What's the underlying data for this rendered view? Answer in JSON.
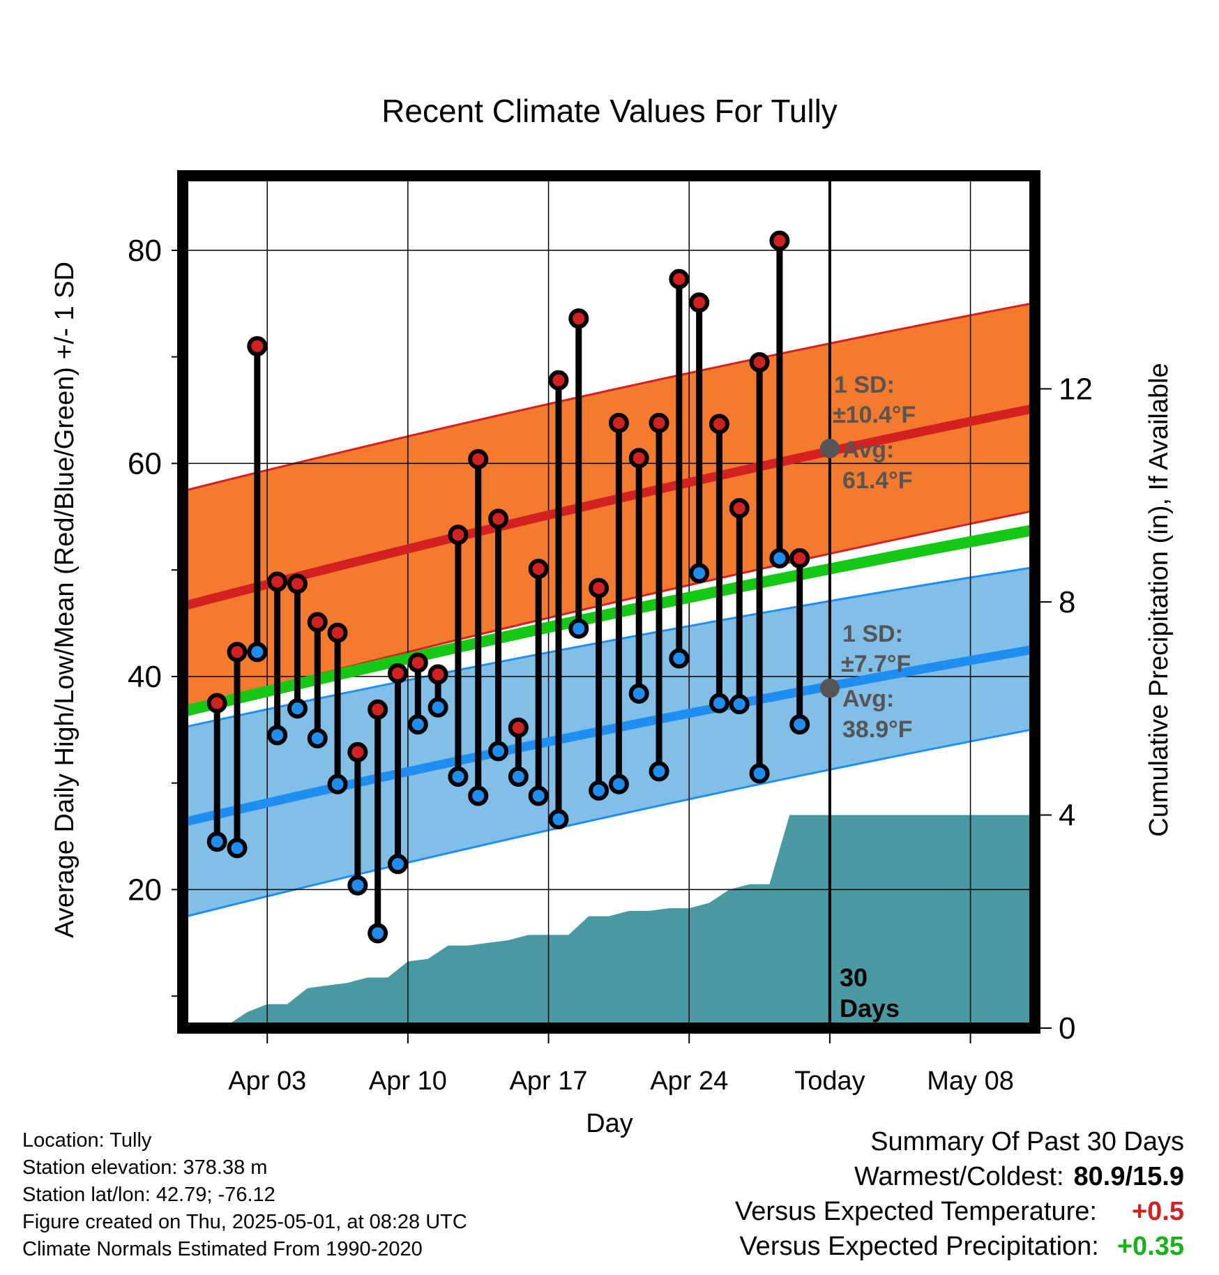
{
  "chart_data": {
    "type": "line",
    "title": "Recent Climate Values For Tully",
    "xlabel": "Day",
    "ylabel": "Average Daily High/Low/Mean (Red/Blue/Green) +/- 1 SD",
    "y2label": "Cumulative Precipitation (in), If Available",
    "x_domain": [
      "2025-03-30",
      "2025-05-11"
    ],
    "ylim": [
      7,
      87
    ],
    "y2lim": [
      0,
      16
    ],
    "yticks": [
      20,
      40,
      60,
      80
    ],
    "y2ticks": [
      0,
      4,
      8,
      12
    ],
    "xticks": [
      {
        "date": "2025-04-03",
        "label": "Apr 03"
      },
      {
        "date": "2025-04-10",
        "label": "Apr 10"
      },
      {
        "date": "2025-04-17",
        "label": "Apr 17"
      },
      {
        "date": "2025-04-24",
        "label": "Apr 24"
      },
      {
        "date": "2025-05-01",
        "label": "Today"
      },
      {
        "date": "2025-05-08",
        "label": "May 08"
      }
    ],
    "grid": true,
    "normals": {
      "dates": [
        "2025-03-30",
        "2025-05-11"
      ],
      "high_mean": [
        46.7,
        65.1
      ],
      "high_upper": [
        57.5,
        75.0
      ],
      "high_lower": [
        37.0,
        55.5
      ],
      "mean_avg": [
        36.8,
        53.7
      ],
      "low_mean": [
        26.4,
        42.5
      ],
      "low_upper": [
        35.3,
        50.2
      ],
      "low_lower": [
        17.5,
        35.0
      ]
    },
    "daily": {
      "dates": [
        "2025-03-31",
        "2025-04-01",
        "2025-04-02",
        "2025-04-03",
        "2025-04-04",
        "2025-04-05",
        "2025-04-06",
        "2025-04-07",
        "2025-04-08",
        "2025-04-09",
        "2025-04-10",
        "2025-04-11",
        "2025-04-12",
        "2025-04-13",
        "2025-04-14",
        "2025-04-15",
        "2025-04-16",
        "2025-04-17",
        "2025-04-18",
        "2025-04-19",
        "2025-04-20",
        "2025-04-21",
        "2025-04-22",
        "2025-04-23",
        "2025-04-24",
        "2025-04-25",
        "2025-04-26",
        "2025-04-27",
        "2025-04-28",
        "2025-04-29",
        "2025-04-30"
      ],
      "high": [
        37.5,
        42.3,
        71.0,
        48.9,
        48.7,
        45.1,
        44.1,
        32.9,
        36.9,
        40.3,
        41.3,
        40.2,
        53.3,
        60.4,
        54.8,
        35.2,
        50.1,
        67.8,
        73.6,
        48.3,
        63.8,
        60.5,
        63.8,
        77.3,
        75.1,
        63.7,
        55.8,
        69.5,
        80.9,
        51.1,
        null
      ],
      "low": [
        24.5,
        23.9,
        42.3,
        34.5,
        37.0,
        34.2,
        29.9,
        20.4,
        15.9,
        22.4,
        35.5,
        37.1,
        30.6,
        28.8,
        33.0,
        30.6,
        28.8,
        26.6,
        44.5,
        29.3,
        29.9,
        38.4,
        31.1,
        41.7,
        49.7,
        37.5,
        37.4,
        30.9,
        51.1,
        35.5,
        null
      ]
    },
    "precip_cumulative": {
      "dates": [
        "2025-03-30",
        "2025-04-01",
        "2025-04-02",
        "2025-04-03",
        "2025-04-04",
        "2025-04-05",
        "2025-04-06",
        "2025-04-07",
        "2025-04-08",
        "2025-04-09",
        "2025-04-10",
        "2025-04-11",
        "2025-04-12",
        "2025-04-13",
        "2025-04-14",
        "2025-04-15",
        "2025-04-16",
        "2025-04-17",
        "2025-04-18",
        "2025-04-19",
        "2025-04-20",
        "2025-04-21",
        "2025-04-22",
        "2025-04-23",
        "2025-04-24",
        "2025-04-25",
        "2025-04-26",
        "2025-04-27",
        "2025-04-28",
        "2025-04-29",
        "2025-05-01",
        "2025-05-11"
      ],
      "values": [
        0.0,
        0.05,
        0.3,
        0.45,
        0.45,
        0.75,
        0.8,
        0.85,
        0.95,
        0.95,
        1.25,
        1.3,
        1.55,
        1.55,
        1.6,
        1.65,
        1.75,
        1.75,
        1.75,
        2.1,
        2.1,
        2.2,
        2.2,
        2.25,
        2.25,
        2.35,
        2.6,
        2.7,
        2.7,
        4.0,
        4.0,
        4.0
      ]
    },
    "annotations": {
      "high_sd_label": "1 SD:",
      "high_sd_value": "±10.4°F",
      "high_avg_label": "Avg:",
      "high_avg_value": "61.4°F",
      "high_avg_point": 61.4,
      "low_sd_label": "1 SD:",
      "low_sd_value": "±7.7°F",
      "low_avg_label": "Avg:",
      "low_avg_value": "38.9°F",
      "low_avg_point": 38.9,
      "window_label_1": "30",
      "window_label_2": "Days"
    },
    "colors": {
      "high_band": "#f47a2d",
      "high_line": "#d32121",
      "low_band": "#82bfe6",
      "low_line": "#1e8ff0",
      "mean_line": "#14c814",
      "precip": "#4899a1",
      "high_dot": "#d32121",
      "low_dot": "#1e8ff0",
      "annotation": "#555555"
    }
  },
  "footer": {
    "location": "Location: Tully",
    "elevation": "Station elevation: 378.38 m",
    "latlon": "Station lat/lon: 42.79; -76.12",
    "created": "Figure created on Thu, 2025-05-01, at 08:28 UTC",
    "normals": "Climate Normals Estimated From 1990-2020"
  },
  "summary": {
    "title": "Summary Of Past 30 Days",
    "warmest_label": "Warmest/Coldest:",
    "warmest_value": "80.9/15.9",
    "temp_label": "Versus Expected Temperature:",
    "temp_value": "+0.5",
    "temp_color": "#d32121",
    "precip_label": "Versus Expected Precipitation:",
    "precip_value": "+0.35",
    "precip_color": "#14b414"
  }
}
